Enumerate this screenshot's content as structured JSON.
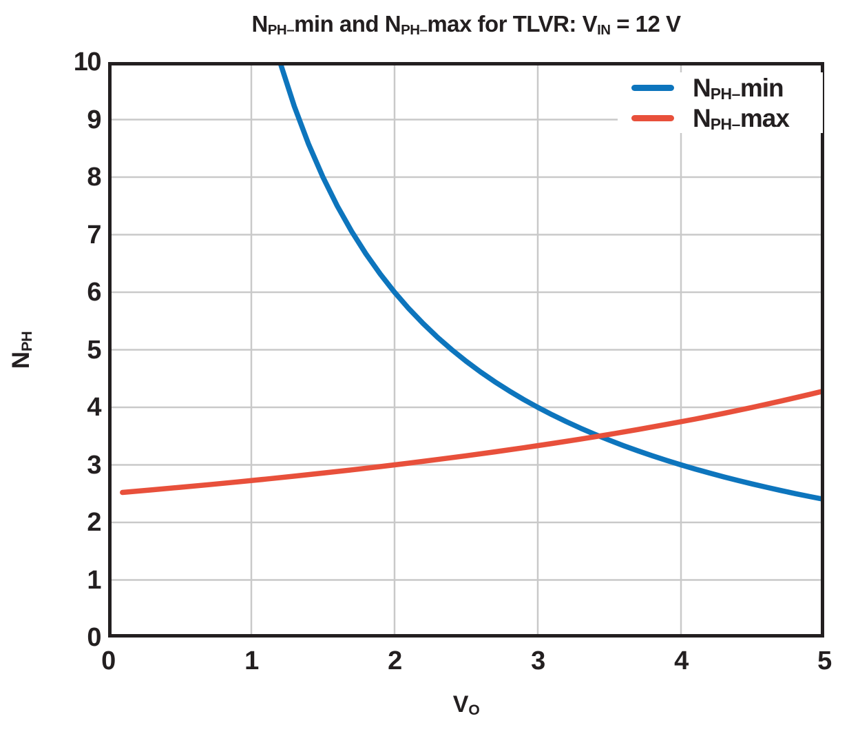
{
  "chart_data": {
    "type": "line",
    "title_text": "N_PH_min and N_PH_max for TLVR: V_IN = 12 V",
    "title_parts": [
      {
        "t": "N"
      },
      {
        "t": "PH–",
        "sub": true
      },
      {
        "t": "min and N"
      },
      {
        "t": "PH–",
        "sub": true
      },
      {
        "t": "max for TLVR: V"
      },
      {
        "t": "IN",
        "sub": true
      },
      {
        "t": " = 12 V"
      }
    ],
    "xlabel_text": "V_O",
    "xlabel_parts": [
      {
        "t": "V"
      },
      {
        "t": "O",
        "sub": true
      }
    ],
    "ylabel_text": "N_PH",
    "ylabel_parts": [
      {
        "t": "N"
      },
      {
        "t": "PH",
        "sub": true
      }
    ],
    "xlim": [
      0,
      5
    ],
    "ylim": [
      0,
      10
    ],
    "xticks": [
      "0",
      "1",
      "2",
      "3",
      "4",
      "5"
    ],
    "yticks": [
      "0",
      "1",
      "2",
      "3",
      "4",
      "5",
      "6",
      "7",
      "8",
      "9",
      "10"
    ],
    "grid": true,
    "legend_position": "top-right",
    "colors": {
      "frame": "#231f20",
      "grid": "#c9c9c9",
      "text": "#231f20",
      "background": "#ffffff",
      "nph_min": "#0d75bd",
      "nph_max": "#e8503b"
    },
    "series": [
      {
        "name": "N_PH_min",
        "name_parts": [
          {
            "t": "N"
          },
          {
            "t": "PH–",
            "sub": true
          },
          {
            "t": "min"
          }
        ],
        "color": "#0d75bd",
        "x": [
          1.2,
          1.3,
          1.4,
          1.5,
          1.6,
          1.7,
          1.8,
          1.9,
          2.0,
          2.1,
          2.2,
          2.3,
          2.4,
          2.5,
          2.6,
          2.7,
          2.8,
          2.9,
          3.0,
          3.1,
          3.2,
          3.3,
          3.4,
          3.5,
          3.6,
          3.7,
          3.8,
          3.9,
          4.0,
          4.1,
          4.2,
          4.3,
          4.4,
          4.5,
          4.6,
          4.7,
          4.8,
          4.9,
          5.0
        ],
        "y": [
          10,
          9.231,
          8.571,
          8.0,
          7.5,
          7.059,
          6.667,
          6.316,
          6.0,
          5.714,
          5.455,
          5.217,
          5.0,
          4.8,
          4.615,
          4.444,
          4.286,
          4.138,
          4.0,
          3.871,
          3.75,
          3.636,
          3.529,
          3.429,
          3.333,
          3.243,
          3.158,
          3.077,
          3.0,
          2.927,
          2.857,
          2.791,
          2.727,
          2.667,
          2.609,
          2.553,
          2.5,
          2.449,
          2.4
        ]
      },
      {
        "name": "N_PH_max",
        "name_parts": [
          {
            "t": "N"
          },
          {
            "t": "PH–",
            "sub": true
          },
          {
            "t": "max"
          }
        ],
        "color": "#e8503b",
        "x": [
          0.1,
          0.3,
          0.5,
          0.7,
          0.9,
          1.1,
          1.3,
          1.5,
          1.7,
          1.9,
          2.1,
          2.3,
          2.5,
          2.7,
          2.9,
          3.1,
          3.3,
          3.5,
          3.7,
          3.9,
          4.1,
          4.3,
          4.5,
          4.7,
          4.9,
          5.0
        ],
        "y": [
          2.521,
          2.564,
          2.609,
          2.655,
          2.703,
          2.752,
          2.804,
          2.857,
          2.913,
          2.97,
          3.03,
          3.093,
          3.158,
          3.226,
          3.297,
          3.371,
          3.448,
          3.529,
          3.614,
          3.704,
          3.797,
          3.896,
          4.0,
          4.11,
          4.225,
          4.286
        ]
      }
    ]
  }
}
